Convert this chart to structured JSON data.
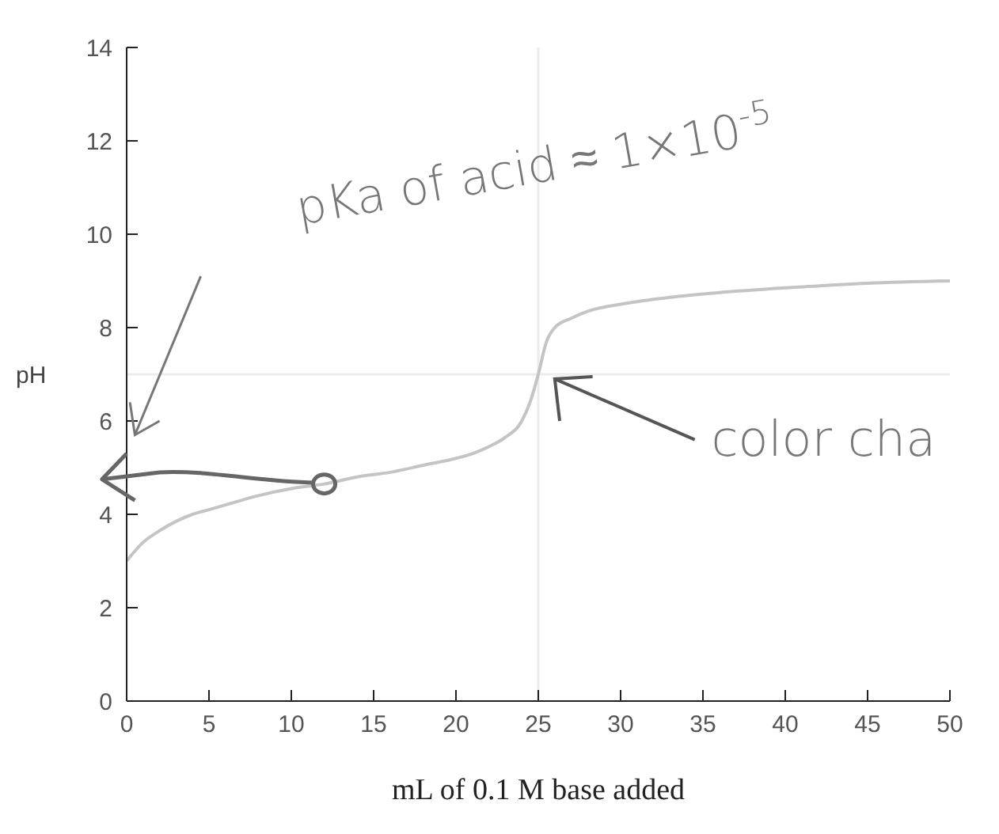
{
  "chart_data": {
    "type": "line",
    "xlabel": "mL of 0.1 M base added",
    "ylabel": "pH",
    "x": [
      0,
      1,
      2,
      3,
      4,
      5,
      6,
      8,
      10,
      12,
      14,
      16,
      18,
      20,
      21,
      22,
      23,
      24,
      24.5,
      25,
      25.5,
      26,
      27,
      28,
      30,
      33,
      36,
      40,
      45,
      50
    ],
    "series": [
      {
        "color": "#c4c4c4",
        "values": [
          3.0,
          3.4,
          3.65,
          3.85,
          4.0,
          4.1,
          4.2,
          4.4,
          4.55,
          4.65,
          4.8,
          4.9,
          5.05,
          5.2,
          5.3,
          5.45,
          5.65,
          6.0,
          6.4,
          7.0,
          7.7,
          8.0,
          8.2,
          8.35,
          8.5,
          8.65,
          8.75,
          8.85,
          8.95,
          9.0
        ]
      }
    ],
    "xlim": [
      0,
      50
    ],
    "xticks": [
      0,
      5,
      10,
      15,
      20,
      25,
      30,
      35,
      40,
      45,
      50
    ],
    "ylim": [
      0,
      14
    ],
    "yticks": [
      0,
      2,
      4,
      6,
      8,
      10,
      12,
      14
    ],
    "ref_lines": [
      {
        "axis": "x",
        "value": 25,
        "color": "#ececec"
      },
      {
        "axis": "y",
        "value": 7,
        "color": "#ececec"
      }
    ],
    "annotations": [
      "pKa of acid ≈ 1×10$^{-5}$",
      {
        "text": "color cha",
        "x": 26,
        "y": 6.9
      }
    ],
    "marker": "none",
    "line_style": "solid"
  }
}
